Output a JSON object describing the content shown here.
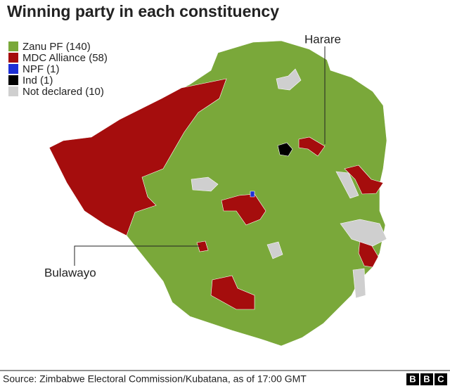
{
  "title": "Winning party in each constituency",
  "legend": [
    {
      "label": "Zanu PF (140)",
      "color": "#7aa83a"
    },
    {
      "label": "MDC Alliance (58)",
      "color": "#a50d0d"
    },
    {
      "label": "NPF (1)",
      "color": "#1d2fd6"
    },
    {
      "label": "Ind (1)",
      "color": "#000000"
    },
    {
      "label": "Not declared (10)",
      "color": "#cfcfcf"
    }
  ],
  "places": {
    "harare": "Harare",
    "bulawayo": "Bulawayo"
  },
  "source": "Source: Zimbabwe Electoral Commission/Kubatana, as of 17:00 GMT",
  "logo": [
    "B",
    "B",
    "C"
  ]
}
